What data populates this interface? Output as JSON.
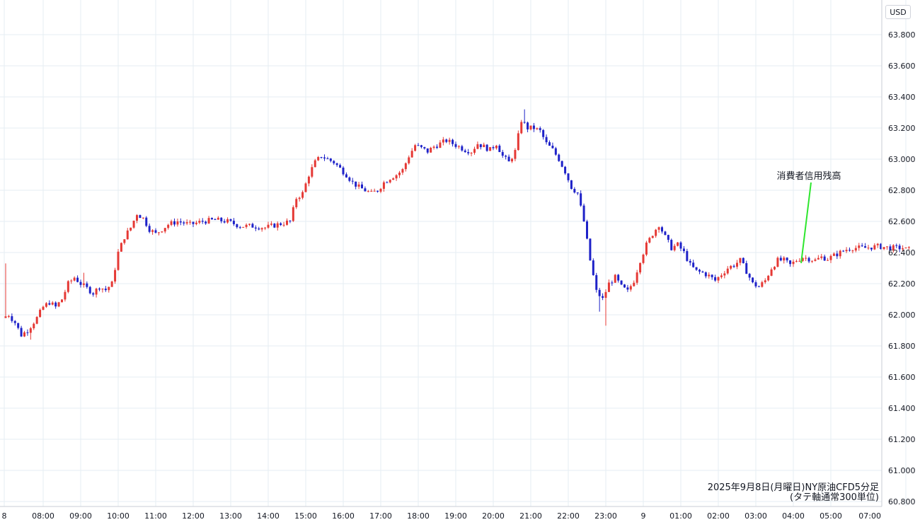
{
  "chart_data": {
    "type": "candlestick",
    "currency": "USD",
    "caption_line1": "2025年9月8日(月曜日)NY原油CFD5分足",
    "caption_line2": "(タテ軸通常300単位)",
    "annotation": "消費者信用残高",
    "ylim": [
      60.8,
      63.9
    ],
    "y_ticks": [
      "63.800",
      "63.600",
      "63.400",
      "63.200",
      "63.000",
      "62.800",
      "62.600",
      "62.400",
      "62.200",
      "62.000",
      "61.800",
      "61.600",
      "61.400",
      "61.200",
      "61.000",
      "60.800"
    ],
    "x_ticks": [
      "8",
      "08:00",
      "09:00",
      "10:00",
      "11:00",
      "12:00",
      "13:00",
      "14:00",
      "15:00",
      "16:00",
      "17:00",
      "18:00",
      "19:00",
      "20:00",
      "21:00",
      "22:00",
      "23:00",
      "9",
      "01:00",
      "02:00",
      "03:00",
      "04:00",
      "05:00",
      "07:00"
    ],
    "x_time_range": [
      "2025-09-08 07:00",
      "2025-09-09 07:05"
    ],
    "bar_interval_minutes": 5,
    "colors": {
      "up": "#e53935",
      "down": "#1e22c8",
      "grid": "#e6edf3",
      "annotation_line": "#2ee62e"
    },
    "close_path": [
      [
        "07:00",
        61.98
      ],
      [
        "07:10",
        62.0
      ],
      [
        "07:20",
        61.95
      ],
      [
        "07:30",
        61.87
      ],
      [
        "07:40",
        61.9
      ],
      [
        "07:55",
        61.98
      ],
      [
        "08:05",
        62.05
      ],
      [
        "08:15",
        62.08
      ],
      [
        "08:25",
        62.05
      ],
      [
        "08:35",
        62.1
      ],
      [
        "08:45",
        62.2
      ],
      [
        "08:55",
        62.24
      ],
      [
        "09:05",
        62.2
      ],
      [
        "09:15",
        62.17
      ],
      [
        "09:25",
        62.14
      ],
      [
        "09:35",
        62.18
      ],
      [
        "09:45",
        62.16
      ],
      [
        "09:55",
        62.2
      ],
      [
        "10:05",
        62.4
      ],
      [
        "10:15",
        62.5
      ],
      [
        "10:25",
        62.56
      ],
      [
        "10:35",
        62.65
      ],
      [
        "10:45",
        62.62
      ],
      [
        "10:55",
        62.55
      ],
      [
        "11:05",
        62.52
      ],
      [
        "11:15",
        62.55
      ],
      [
        "11:25",
        62.58
      ],
      [
        "11:40",
        62.6
      ],
      [
        "12:00",
        62.58
      ],
      [
        "12:20",
        62.6
      ],
      [
        "12:40",
        62.61
      ],
      [
        "13:00",
        62.6
      ],
      [
        "13:20",
        62.57
      ],
      [
        "13:40",
        62.57
      ],
      [
        "14:00",
        62.56
      ],
      [
        "14:20",
        62.58
      ],
      [
        "14:40",
        62.6
      ],
      [
        "14:50",
        62.75
      ],
      [
        "15:00",
        62.78
      ],
      [
        "15:10",
        62.9
      ],
      [
        "15:20",
        62.98
      ],
      [
        "15:30",
        63.02
      ],
      [
        "15:40",
        63.0
      ],
      [
        "15:50",
        62.98
      ],
      [
        "16:00",
        62.94
      ],
      [
        "16:10",
        62.9
      ],
      [
        "16:20",
        62.85
      ],
      [
        "16:30",
        62.82
      ],
      [
        "16:40",
        62.8
      ],
      [
        "16:50",
        62.78
      ],
      [
        "17:00",
        62.8
      ],
      [
        "17:10",
        62.85
      ],
      [
        "17:20",
        62.88
      ],
      [
        "17:30",
        62.9
      ],
      [
        "17:40",
        62.93
      ],
      [
        "17:50",
        63.02
      ],
      [
        "18:00",
        63.09
      ],
      [
        "18:10",
        63.07
      ],
      [
        "18:20",
        63.05
      ],
      [
        "18:30",
        63.08
      ],
      [
        "18:40",
        63.1
      ],
      [
        "18:50",
        63.12
      ],
      [
        "19:00",
        63.1
      ],
      [
        "19:10",
        63.08
      ],
      [
        "19:20",
        63.06
      ],
      [
        "19:30",
        63.05
      ],
      [
        "19:40",
        63.1
      ],
      [
        "19:50",
        63.08
      ],
      [
        "20:00",
        63.06
      ],
      [
        "20:10",
        63.1
      ],
      [
        "20:20",
        63.02
      ],
      [
        "20:30",
        62.98
      ],
      [
        "20:40",
        63.05
      ],
      [
        "20:50",
        63.25
      ],
      [
        "21:00",
        63.2
      ],
      [
        "21:10",
        63.2
      ],
      [
        "21:20",
        63.18
      ],
      [
        "21:30",
        63.1
      ],
      [
        "21:40",
        63.06
      ],
      [
        "21:50",
        63.0
      ],
      [
        "22:00",
        62.92
      ],
      [
        "22:10",
        62.82
      ],
      [
        "22:20",
        62.78
      ],
      [
        "22:30",
        62.6
      ],
      [
        "22:40",
        62.35
      ],
      [
        "22:50",
        62.15
      ],
      [
        "23:00",
        62.1
      ],
      [
        "23:10",
        62.2
      ],
      [
        "23:20",
        62.24
      ],
      [
        "23:30",
        62.18
      ],
      [
        "23:40",
        62.15
      ],
      [
        "23:50",
        62.22
      ],
      [
        "00:00",
        62.35
      ],
      [
        "00:10",
        62.45
      ],
      [
        "00:20",
        62.52
      ],
      [
        "00:30",
        62.58
      ],
      [
        "00:40",
        62.5
      ],
      [
        "00:50",
        62.43
      ],
      [
        "01:00",
        62.45
      ],
      [
        "01:10",
        62.4
      ],
      [
        "01:20",
        62.32
      ],
      [
        "01:30",
        62.28
      ],
      [
        "01:40",
        62.27
      ],
      [
        "01:50",
        62.25
      ],
      [
        "02:00",
        62.22
      ],
      [
        "02:10",
        62.26
      ],
      [
        "02:20",
        62.3
      ],
      [
        "02:30",
        62.32
      ],
      [
        "02:40",
        62.35
      ],
      [
        "02:50",
        62.28
      ],
      [
        "03:00",
        62.2
      ],
      [
        "03:10",
        62.18
      ],
      [
        "03:20",
        62.22
      ],
      [
        "03:30",
        62.3
      ],
      [
        "03:40",
        62.35
      ],
      [
        "03:50",
        62.35
      ],
      [
        "04:00",
        62.32
      ],
      [
        "04:10",
        62.35
      ],
      [
        "04:20",
        62.37
      ],
      [
        "04:30",
        62.36
      ],
      [
        "04:40",
        62.35
      ],
      [
        "04:50",
        62.37
      ],
      [
        "05:00",
        62.36
      ],
      [
        "05:10",
        62.38
      ],
      [
        "05:20",
        62.4
      ],
      [
        "05:30",
        62.42
      ],
      [
        "05:40",
        62.43
      ],
      [
        "06:00",
        62.43
      ],
      [
        "06:20",
        62.44
      ],
      [
        "06:40",
        62.43
      ],
      [
        "07:00",
        62.43
      ],
      [
        "07:05",
        62.42
      ]
    ],
    "notable_highs": [
      [
        "07:00",
        62.33
      ],
      [
        "20:50",
        63.32
      ],
      [
        "09:05",
        62.27
      ]
    ],
    "notable_lows": [
      [
        "23:00",
        61.93
      ],
      [
        "07:40",
        61.84
      ],
      [
        "22:50",
        62.02
      ]
    ]
  }
}
